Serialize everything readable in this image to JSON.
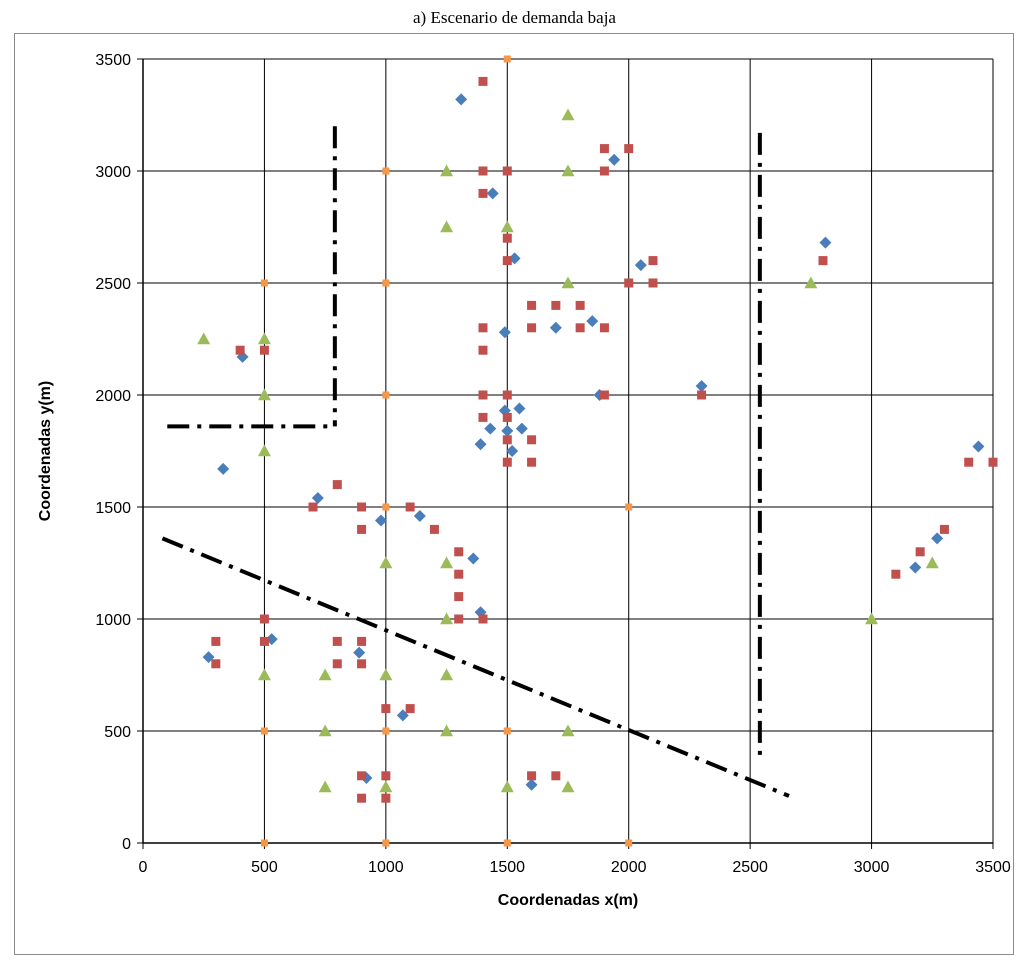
{
  "chart_data": {
    "type": "scatter",
    "title": "a) Escenario de demanda baja",
    "xlabel": "Coordenadas x(m)",
    "ylabel": "Coordenadas y(m)",
    "xlim": [
      0,
      3500
    ],
    "ylim": [
      0,
      3500
    ],
    "xticks": [
      0,
      500,
      1000,
      1500,
      2000,
      2500,
      3000,
      3500
    ],
    "yticks": [
      0,
      500,
      1000,
      1500,
      2000,
      2500,
      3000,
      3500
    ],
    "grid": true,
    "legend": "none",
    "series": [
      {
        "marker": "diamond",
        "color": "#4a7ebb",
        "points": [
          [
            1310,
            3320
          ],
          [
            1940,
            3050
          ],
          [
            1440,
            2900
          ],
          [
            2810,
            2680
          ],
          [
            1530,
            2610
          ],
          [
            2050,
            2580
          ],
          [
            1850,
            2330
          ],
          [
            1490,
            2280
          ],
          [
            1700,
            2300
          ],
          [
            410,
            2170
          ],
          [
            2300,
            2040
          ],
          [
            1880,
            2000
          ],
          [
            1490,
            1930
          ],
          [
            1550,
            1940
          ],
          [
            3440,
            1770
          ],
          [
            1430,
            1850
          ],
          [
            1500,
            1840
          ],
          [
            1560,
            1850
          ],
          [
            1390,
            1780
          ],
          [
            1520,
            1750
          ],
          [
            330,
            1670
          ],
          [
            720,
            1540
          ],
          [
            1140,
            1460
          ],
          [
            980,
            1440
          ],
          [
            1360,
            1270
          ],
          [
            3270,
            1360
          ],
          [
            3180,
            1230
          ],
          [
            1390,
            1030
          ],
          [
            270,
            830
          ],
          [
            530,
            910
          ],
          [
            890,
            850
          ],
          [
            1070,
            570
          ],
          [
            920,
            290
          ],
          [
            1600,
            260
          ]
        ]
      },
      {
        "marker": "square",
        "color": "#c0504d",
        "points": [
          [
            1400,
            3400
          ],
          [
            1400,
            3000
          ],
          [
            1500,
            3000
          ],
          [
            1900,
            3100
          ],
          [
            2000,
            3100
          ],
          [
            1900,
            3000
          ],
          [
            1400,
            2900
          ],
          [
            1500,
            2700
          ],
          [
            1500,
            2600
          ],
          [
            2100,
            2600
          ],
          [
            2800,
            2600
          ],
          [
            2000,
            2500
          ],
          [
            2100,
            2500
          ],
          [
            1600,
            2400
          ],
          [
            1700,
            2400
          ],
          [
            1800,
            2400
          ],
          [
            1400,
            2300
          ],
          [
            1600,
            2300
          ],
          [
            1800,
            2300
          ],
          [
            1900,
            2300
          ],
          [
            400,
            2200
          ],
          [
            500,
            2200
          ],
          [
            1400,
            2200
          ],
          [
            1400,
            2000
          ],
          [
            1500,
            2000
          ],
          [
            1900,
            2000
          ],
          [
            2300,
            2000
          ],
          [
            1400,
            1900
          ],
          [
            1500,
            1900
          ],
          [
            1500,
            1800
          ],
          [
            1600,
            1800
          ],
          [
            1500,
            1700
          ],
          [
            1600,
            1700
          ],
          [
            3400,
            1700
          ],
          [
            3500,
            1700
          ],
          [
            800,
            1600
          ],
          [
            700,
            1500
          ],
          [
            900,
            1500
          ],
          [
            1100,
            1500
          ],
          [
            900,
            1400
          ],
          [
            1200,
            1400
          ],
          [
            3300,
            1400
          ],
          [
            1300,
            1300
          ],
          [
            3200,
            1300
          ],
          [
            1300,
            1200
          ],
          [
            3100,
            1200
          ],
          [
            1300,
            1100
          ],
          [
            500,
            1000
          ],
          [
            1300,
            1000
          ],
          [
            1400,
            1000
          ],
          [
            300,
            900
          ],
          [
            500,
            900
          ],
          [
            800,
            900
          ],
          [
            900,
            900
          ],
          [
            300,
            800
          ],
          [
            800,
            800
          ],
          [
            900,
            800
          ],
          [
            1000,
            600
          ],
          [
            1100,
            600
          ],
          [
            900,
            300
          ],
          [
            1000,
            300
          ],
          [
            1600,
            300
          ],
          [
            1700,
            300
          ],
          [
            900,
            200
          ],
          [
            1000,
            200
          ]
        ]
      },
      {
        "marker": "triangle",
        "color": "#9bbb59",
        "points": [
          [
            1750,
            3250
          ],
          [
            1250,
            3000
          ],
          [
            1750,
            3000
          ],
          [
            1250,
            2750
          ],
          [
            1500,
            2750
          ],
          [
            1750,
            2500
          ],
          [
            2750,
            2500
          ],
          [
            250,
            2250
          ],
          [
            500,
            2250
          ],
          [
            500,
            2000
          ],
          [
            500,
            1750
          ],
          [
            1000,
            1250
          ],
          [
            1250,
            1250
          ],
          [
            3250,
            1250
          ],
          [
            1250,
            1000
          ],
          [
            3000,
            1000
          ],
          [
            500,
            750
          ],
          [
            750,
            750
          ],
          [
            1000,
            750
          ],
          [
            1250,
            750
          ],
          [
            750,
            500
          ],
          [
            1250,
            500
          ],
          [
            1750,
            500
          ],
          [
            750,
            250
          ],
          [
            1000,
            250
          ],
          [
            1500,
            250
          ],
          [
            1750,
            250
          ]
        ]
      },
      {
        "marker": "small-square",
        "color": "#f79646",
        "points": [
          [
            1500,
            3500
          ],
          [
            1000,
            3000
          ],
          [
            500,
            2500
          ],
          [
            1000,
            2500
          ],
          [
            1000,
            2000
          ],
          [
            1000,
            1500
          ],
          [
            2000,
            1500
          ],
          [
            500,
            500
          ],
          [
            1000,
            500
          ],
          [
            1500,
            500
          ],
          [
            500,
            0
          ],
          [
            1000,
            0
          ],
          [
            1500,
            0
          ],
          [
            2000,
            0
          ]
        ]
      }
    ],
    "annotation_lines": [
      {
        "style": "dash-dot",
        "color": "#000000",
        "points": [
          [
            790,
            3200
          ],
          [
            790,
            1860
          ]
        ]
      },
      {
        "style": "dash-dot",
        "color": "#000000",
        "points": [
          [
            100,
            1860
          ],
          [
            790,
            1860
          ]
        ]
      },
      {
        "style": "dash-dot",
        "color": "#000000",
        "points": [
          [
            80,
            1360
          ],
          [
            2660,
            210
          ]
        ]
      },
      {
        "style": "dash-dot",
        "color": "#000000",
        "points": [
          [
            2540,
            3170
          ],
          [
            2540,
            370
          ]
        ]
      }
    ]
  }
}
